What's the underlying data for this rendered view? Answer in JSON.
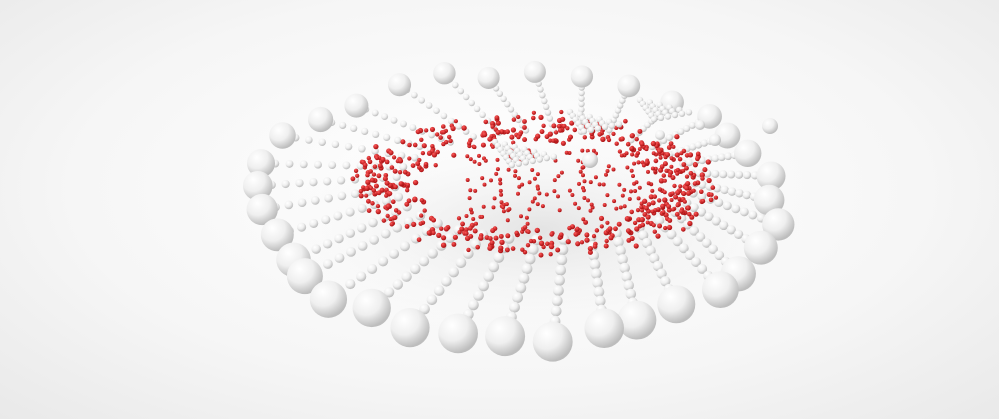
{
  "scene": {
    "description_label": "molecular-rendering",
    "colors": {
      "background": "#f6f6f6",
      "bead": "#f2f2f2",
      "bead_shadow": "#c9c9c9",
      "dot": "#d4181b"
    }
  }
}
